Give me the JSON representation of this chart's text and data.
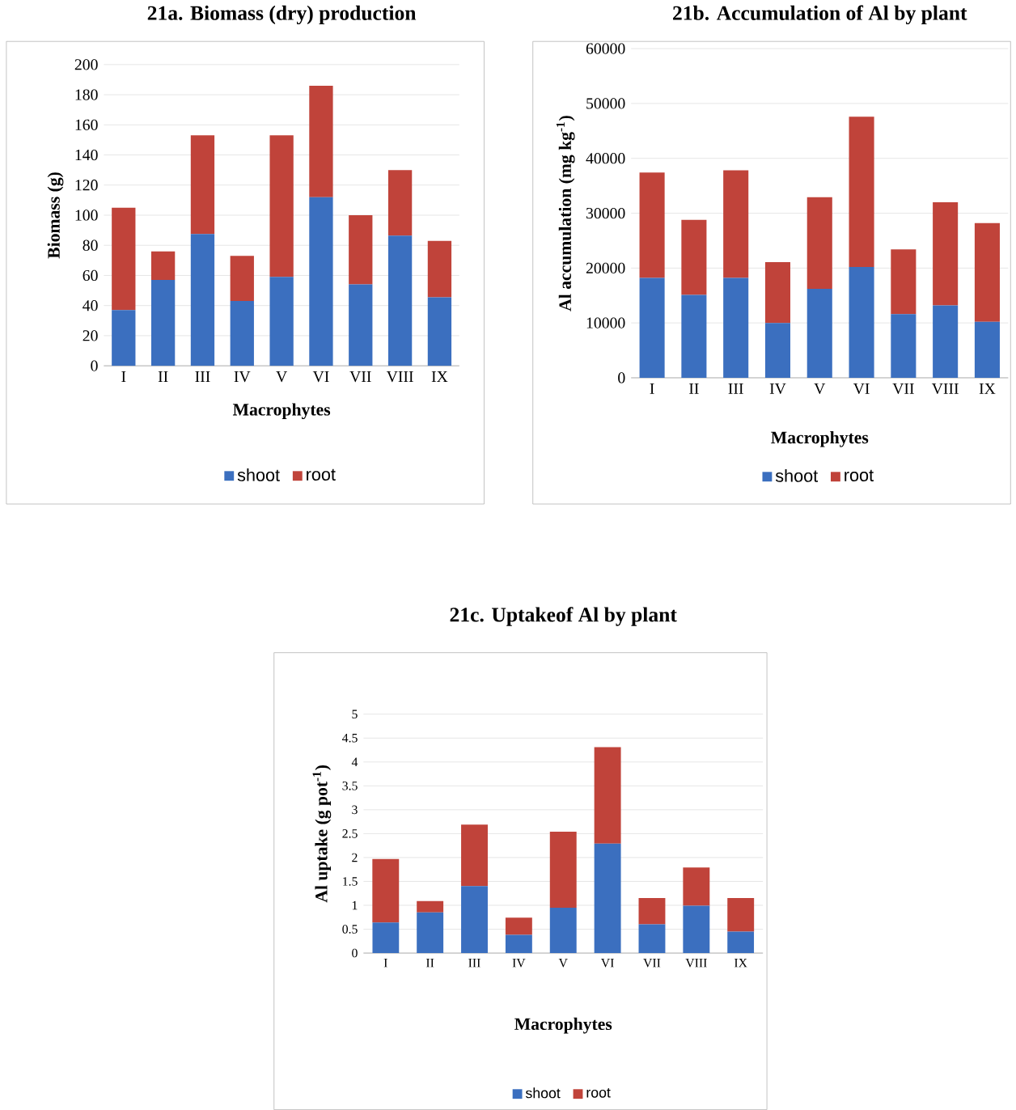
{
  "chart_data": [
    {
      "type": "bar",
      "stacked": true,
      "title": "21a. Biomass (dry) production",
      "xlabel": "Macrophytes",
      "ylabel": "Biomass (g)",
      "categories": [
        "I",
        "II",
        "III",
        "IV",
        "V",
        "VI",
        "VII",
        "VIII",
        "IX"
      ],
      "series": [
        {
          "name": "shoot",
          "color": "#3b6fbf",
          "values": [
            37,
            57,
            87.5,
            43,
            59,
            112,
            54,
            86.5,
            45.5
          ]
        },
        {
          "name": "root",
          "color": "#c0433a",
          "values": [
            68,
            19,
            65.5,
            30,
            94,
            74,
            46,
            43.5,
            37.5
          ]
        }
      ],
      "ylim": [
        0,
        200
      ],
      "yticks": [
        0,
        20,
        40,
        60,
        80,
        100,
        120,
        140,
        160,
        180,
        200
      ],
      "grid": "y",
      "legend": "bottom"
    },
    {
      "type": "bar",
      "stacked": true,
      "title": "21b. Accumulation of Al by plant",
      "xlabel": "Macrophytes",
      "ylabel": "Al accumulation (mg kg$^{-1}$)",
      "categories": [
        "I",
        "II",
        "III",
        "IV",
        "V",
        "VI",
        "VII",
        "VIII",
        "IX"
      ],
      "series": [
        {
          "name": "shoot",
          "color": "#3b6fbf",
          "values": [
            18200,
            15100,
            18200,
            10000,
            16200,
            20200,
            11600,
            13200,
            10200
          ]
        },
        {
          "name": "root",
          "color": "#c0433a",
          "values": [
            19200,
            13700,
            19600,
            11100,
            16700,
            27400,
            11800,
            18800,
            18000
          ]
        }
      ],
      "ylim": [
        0,
        60000
      ],
      "yticks": [
        0,
        10000,
        20000,
        30000,
        40000,
        50000,
        60000
      ],
      "grid": "y",
      "legend": "bottom"
    },
    {
      "type": "bar",
      "stacked": true,
      "title": "21c. Uptakeof Al by plant",
      "xlabel": "Macrophytes",
      "ylabel": "Al uptake (g pot$^{-1}$)",
      "categories": [
        "I",
        "II",
        "III",
        "IV",
        "V",
        "VI",
        "VII",
        "VIII",
        "IX"
      ],
      "series": [
        {
          "name": "shoot",
          "color": "#3b6fbf",
          "values": [
            0.64,
            0.85,
            1.4,
            0.38,
            0.95,
            2.29,
            0.6,
            0.99,
            0.45
          ]
        },
        {
          "name": "root",
          "color": "#c0433a",
          "values": [
            1.33,
            0.24,
            1.29,
            0.36,
            1.59,
            2.02,
            0.55,
            0.8,
            0.7
          ]
        }
      ],
      "ylim": [
        0,
        5
      ],
      "yticks": [
        0,
        0.5,
        1,
        1.5,
        2,
        2.5,
        3,
        3.5,
        4,
        4.5,
        5
      ],
      "grid": "y",
      "legend": "bottom"
    }
  ]
}
